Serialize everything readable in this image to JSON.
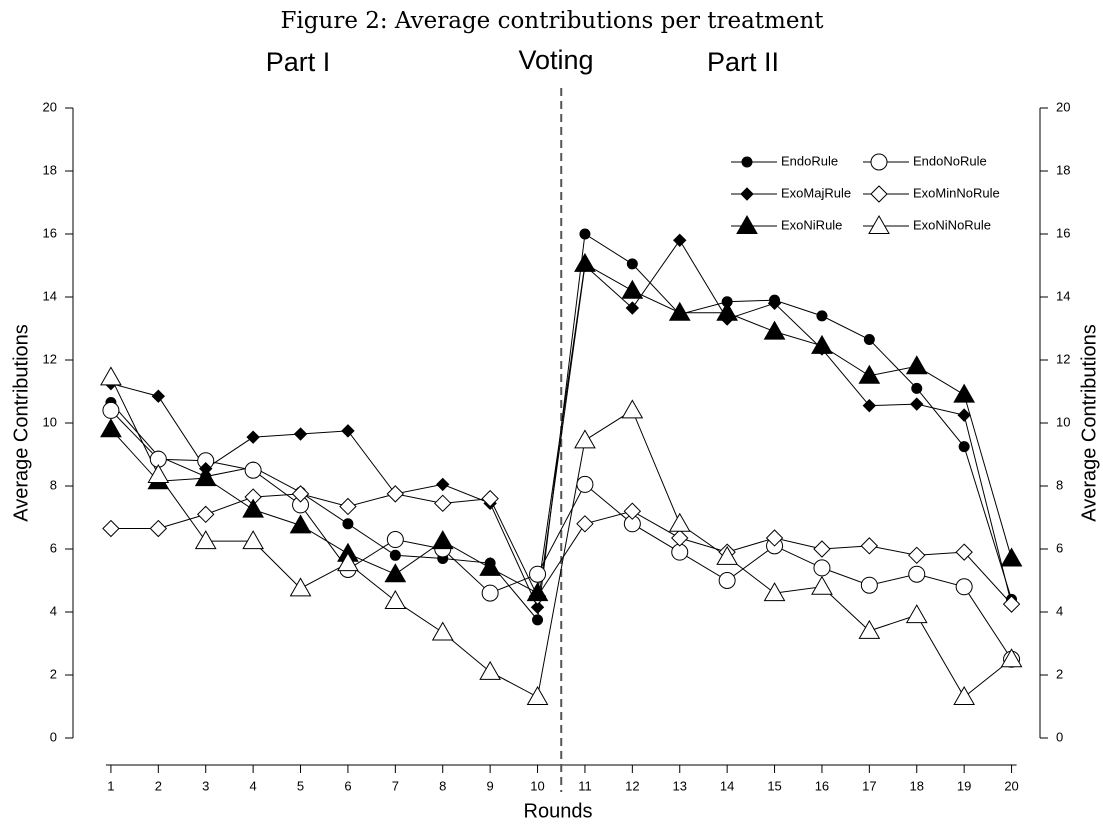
{
  "chart_data": {
    "type": "line",
    "title": "Figure 2: Average contributions per treatment",
    "annotations": [
      "Part I",
      "Voting",
      "Part II"
    ],
    "vline": 10.5,
    "xlabel": "Rounds",
    "ylabel": "Average Contributions",
    "y2label": "Average Contributions",
    "x": [
      1,
      2,
      3,
      4,
      5,
      6,
      7,
      8,
      9,
      10,
      11,
      12,
      13,
      14,
      15,
      16,
      17,
      18,
      19,
      20
    ],
    "xlim": [
      0.2,
      20.6
    ],
    "xticks": [
      1,
      2,
      3,
      4,
      5,
      6,
      7,
      8,
      9,
      10,
      11,
      12,
      13,
      14,
      15,
      16,
      17,
      18,
      19,
      20
    ],
    "ylim": [
      0,
      20
    ],
    "yticks": [
      0,
      2,
      4,
      6,
      8,
      10,
      12,
      14,
      16,
      18,
      20
    ],
    "y2lim": [
      0,
      20
    ],
    "y2ticks": [
      0,
      2,
      4,
      6,
      8,
      10,
      12,
      14,
      16,
      18,
      20
    ],
    "series": [
      {
        "name": "EndoRule",
        "color": "#000000",
        "marker": "circle",
        "filled": true,
        "values": [
          10.65,
          8.95,
          8.3,
          8.6,
          7.8,
          6.8,
          5.8,
          5.7,
          5.55,
          3.75,
          16.0,
          15.05,
          13.45,
          13.85,
          13.9,
          13.4,
          12.65,
          11.1,
          9.25,
          4.4
        ]
      },
      {
        "name": "EndoNoRule",
        "color": "#000000",
        "marker": "circle",
        "filled": false,
        "values": [
          10.4,
          8.85,
          8.8,
          8.5,
          7.4,
          5.35,
          6.3,
          6.0,
          4.6,
          5.2,
          8.05,
          6.8,
          5.9,
          5.0,
          6.1,
          5.4,
          4.85,
          5.2,
          4.8,
          2.5
        ]
      },
      {
        "name": "ExoMajRule",
        "color": "#000000",
        "marker": "diamond",
        "filled": true,
        "values": [
          11.25,
          10.85,
          8.55,
          9.55,
          9.65,
          9.75,
          7.75,
          8.05,
          7.45,
          4.15,
          15.0,
          13.65,
          15.8,
          13.3,
          13.8,
          12.35,
          10.55,
          10.6,
          10.25,
          4.25
        ]
      },
      {
        "name": "ExoMinNoRule",
        "color": "#000000",
        "marker": "diamond",
        "filled": false,
        "values": [
          6.65,
          6.65,
          7.1,
          7.65,
          7.75,
          7.35,
          7.75,
          7.45,
          7.6,
          4.5,
          6.8,
          7.2,
          6.35,
          5.9,
          6.35,
          6.0,
          6.1,
          5.8,
          5.9,
          4.25
        ]
      },
      {
        "name": "ExoNiRule",
        "color": "#000000",
        "marker": "triangle",
        "filled": true,
        "values": [
          9.8,
          8.15,
          8.25,
          7.25,
          6.75,
          5.85,
          5.2,
          6.25,
          5.4,
          4.6,
          15.05,
          14.2,
          13.5,
          13.5,
          12.9,
          12.45,
          11.5,
          11.8,
          10.9,
          5.7
        ]
      },
      {
        "name": "ExoNiNoRule",
        "color": "#000000",
        "marker": "triangle",
        "filled": false,
        "values": [
          11.45,
          8.35,
          6.25,
          6.25,
          4.75,
          5.55,
          4.35,
          3.35,
          2.1,
          1.3,
          9.45,
          10.4,
          6.8,
          5.75,
          4.6,
          4.8,
          3.4,
          3.9,
          1.3,
          2.5
        ]
      }
    ]
  }
}
